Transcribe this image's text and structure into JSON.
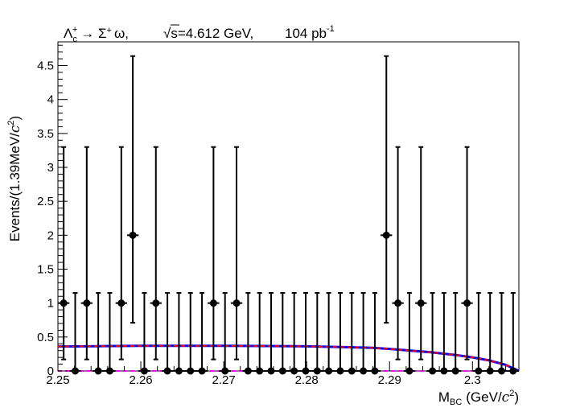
{
  "chart_data": {
    "type": "scatter",
    "title": "Λc+ → Σ+ ω,     √s=4.612 GeV,     104 pb-1",
    "title_parts": {
      "decay_lambda": "Λ",
      "decay_lambda_sub": "c",
      "decay_lambda_sup": "+",
      "decay_rest": "→ Σ",
      "decay_sigma_sup": "+",
      "decay_omega": "ω,",
      "sqrt_symbol": "√",
      "energy": "s=4.612 GeV,",
      "lumi": "104 pb",
      "lumi_sup": "-1"
    },
    "xlabel_main": "M",
    "xlabel_sub": "BC",
    "xlabel_unit": "(GeV/",
    "xlabel_c": "c",
    "xlabel_sup": "2",
    "xlabel_close": ")",
    "ylabel_main": "Events/(1.39MeV/",
    "ylabel_c": "c",
    "ylabel_sup": "2",
    "ylabel_close": ")",
    "xlim": [
      2.25,
      2.3056
    ],
    "ylim": [
      0,
      4.85
    ],
    "x_ticks": [
      {
        "v": 2.25,
        "label": "2.25"
      },
      {
        "v": 2.26,
        "label": "2.26"
      },
      {
        "v": 2.27,
        "label": "2.27"
      },
      {
        "v": 2.28,
        "label": "2.28"
      },
      {
        "v": 2.29,
        "label": "2.29"
      },
      {
        "v": 2.3,
        "label": "2.3"
      }
    ],
    "y_ticks": [
      {
        "v": 0,
        "label": "0"
      },
      {
        "v": 0.5,
        "label": "0.5"
      },
      {
        "v": 1,
        "label": "1"
      },
      {
        "v": 1.5,
        "label": "1.5"
      },
      {
        "v": 2,
        "label": "2"
      },
      {
        "v": 2.5,
        "label": "2.5"
      },
      {
        "v": 3,
        "label": "3"
      },
      {
        "v": 3.5,
        "label": "3.5"
      },
      {
        "v": 4,
        "label": "4"
      },
      {
        "v": 4.5,
        "label": "4.5"
      }
    ],
    "bin_width": 0.00139,
    "x_start": 2.25,
    "data_counts": [
      1,
      0,
      1,
      0,
      0,
      1,
      2,
      0,
      1,
      0,
      0,
      0,
      0,
      1,
      0,
      1,
      0,
      0,
      0,
      0,
      0,
      0,
      0,
      0,
      0,
      0,
      0,
      0,
      2,
      1,
      0,
      1,
      0,
      0,
      0,
      1,
      0,
      0,
      0,
      0
    ],
    "error_up": {
      "0": 1.15,
      "1": 2.3,
      "2": 2.64
    },
    "error_down": {
      "0": 0,
      "1": 0.83,
      "2": 1.29
    },
    "series": [
      {
        "name": "",
        "style": "fit",
        "color": "#0000ff",
        "x": [
          2.25,
          2.255,
          2.26,
          2.265,
          2.27,
          2.275,
          2.28,
          2.285,
          2.288,
          2.29,
          2.292,
          2.295,
          2.298,
          2.3,
          2.302,
          2.304,
          2.3056
        ],
        "y": [
          0.36,
          0.365,
          0.37,
          0.37,
          0.37,
          0.368,
          0.363,
          0.35,
          0.34,
          0.325,
          0.305,
          0.275,
          0.235,
          0.2,
          0.155,
          0.09,
          0.0
        ]
      },
      {
        "name": "",
        "style": "background-dashed",
        "color": "#ff0000",
        "x": [
          2.25,
          2.255,
          2.26,
          2.265,
          2.27,
          2.275,
          2.28,
          2.285,
          2.288,
          2.29,
          2.292,
          2.295,
          2.298,
          2.3,
          2.302,
          2.304,
          2.3056
        ],
        "y": [
          0.36,
          0.365,
          0.37,
          0.37,
          0.37,
          0.368,
          0.363,
          0.35,
          0.34,
          0.325,
          0.305,
          0.275,
          0.235,
          0.2,
          0.155,
          0.09,
          0.0
        ]
      },
      {
        "name": "",
        "style": "signal-dashed",
        "color": "#ff00ff",
        "x": [
          2.25,
          2.3056
        ],
        "y": [
          0,
          0
        ]
      }
    ],
    "grid": false,
    "marker_color": "#000000"
  }
}
